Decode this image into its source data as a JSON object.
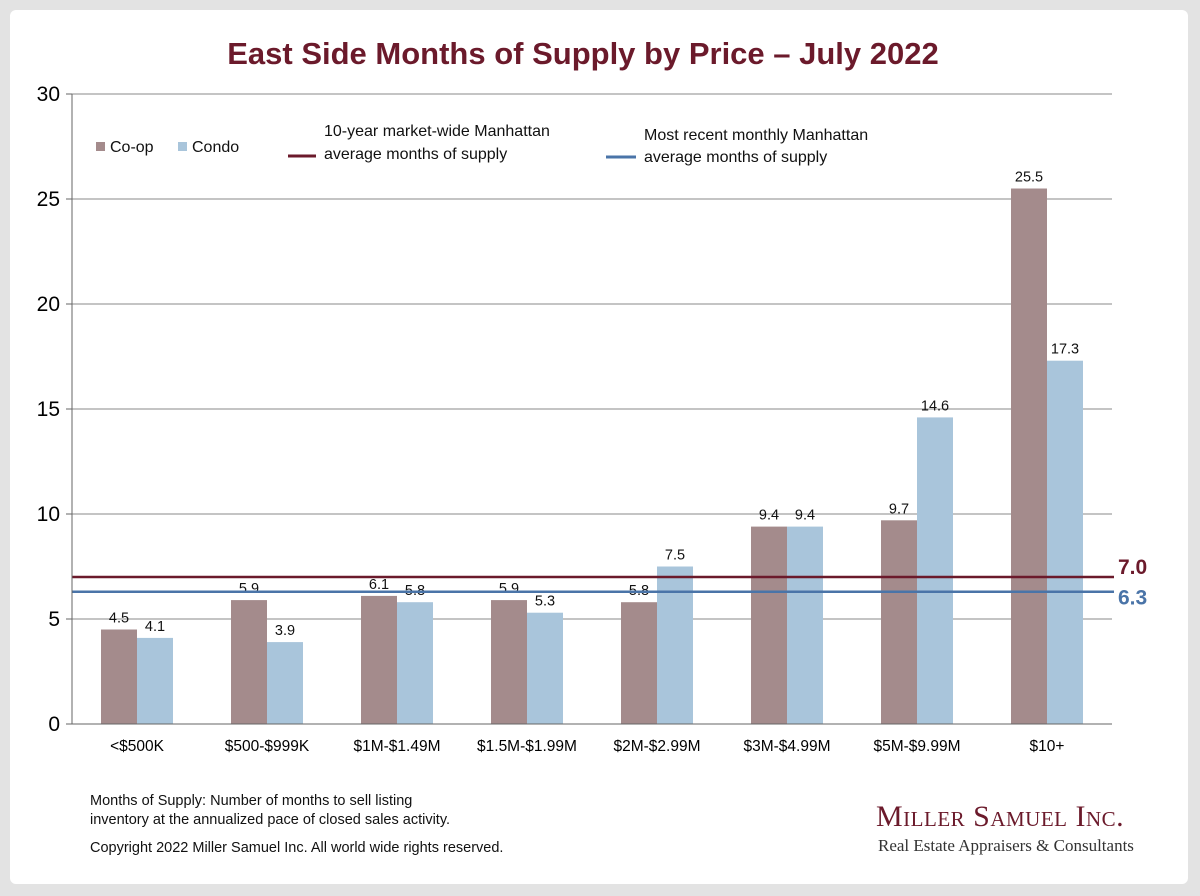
{
  "chart_data": {
    "type": "bar",
    "title": "East Side Months of Supply by Price – July 2022",
    "categories": [
      "<$500K",
      "$500-$999K",
      "$1M-$1.49M",
      "$1.5M-$1.99M",
      "$2M-$2.99M",
      "$3M-$4.99M",
      "$5M-$9.99M",
      "$10+"
    ],
    "series": [
      {
        "name": "Co-op",
        "color": "#a48b8c",
        "values": [
          4.5,
          5.9,
          6.1,
          5.9,
          5.8,
          9.4,
          9.7,
          25.5
        ]
      },
      {
        "name": "Condo",
        "color": "#a9c5db",
        "values": [
          4.1,
          3.9,
          5.8,
          5.3,
          7.5,
          9.4,
          14.6,
          17.3
        ]
      }
    ],
    "ylim": [
      0,
      30
    ],
    "yticks": [
      0,
      5,
      10,
      15,
      20,
      25,
      30
    ],
    "grid": true,
    "reference_lines": [
      {
        "label_line1": "10-year  market-wide Manhattan",
        "label_line2": "average months of supply",
        "value": 7.0,
        "value_label": "7.0",
        "color": "#6b1a2b"
      },
      {
        "label_line1": "Most recent monthly Manhattan",
        "label_line2": "average months of supply",
        "value": 6.3,
        "value_label": "6.3",
        "color": "#4a74a8"
      }
    ],
    "legend_position": "top-left"
  },
  "footnote": {
    "line1": "Months of Supply: Number of months to sell listing",
    "line2": "inventory at the annualized pace of closed sales activity.",
    "copyright": "Copyright 2022 Miller Samuel Inc.  All world wide rights reserved."
  },
  "logo": {
    "name": "Miller Samuel Inc.",
    "tagline": "Real Estate Appraisers & Consultants"
  }
}
